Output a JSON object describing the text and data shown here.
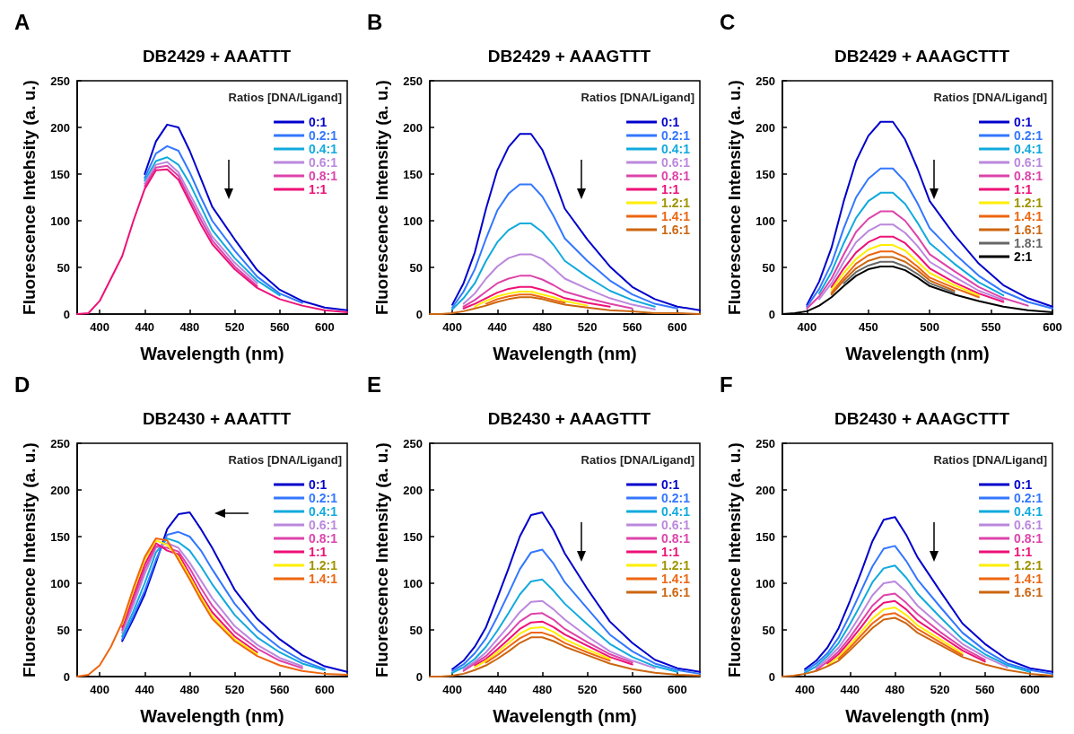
{
  "chart_data": [
    {
      "type": "line",
      "title": "DB2429 + AAATTT",
      "xlabel": "Wavelength (nm)",
      "ylabel": "Fluorescence Intehsity (a. u.)",
      "legend_title": "Ratios [DNA/Ligand]",
      "annotations": [
        "A"
      ],
      "legend": "top right",
      "grid": false,
      "xlim": [
        380,
        620
      ],
      "xticks": [
        400,
        440,
        480,
        520,
        560,
        600
      ],
      "ylim": [
        0,
        250
      ],
      "yticks": [
        0,
        50,
        100,
        150,
        200,
        250
      ],
      "x": [
        380,
        390,
        400,
        410,
        420,
        430,
        440,
        450,
        460,
        470,
        480,
        490,
        500,
        520,
        540,
        560,
        580,
        600,
        620
      ],
      "series": [
        {
          "name": "0:1",
          "color": "#0000cc",
          "values": [
            null,
            null,
            null,
            null,
            null,
            null,
            150,
            185,
            203,
            200,
            175,
            145,
            115,
            80,
            47,
            26,
            14,
            7,
            4
          ]
        },
        {
          "name": "0.2:1",
          "color": "#3377ff",
          "values": [
            null,
            null,
            null,
            null,
            null,
            null,
            146,
            172,
            180,
            175,
            152,
            125,
            100,
            68,
            40,
            22,
            12,
            null,
            null
          ]
        },
        {
          "name": "0.4:1",
          "color": "#11aadd",
          "values": [
            null,
            null,
            null,
            null,
            null,
            null,
            143,
            164,
            168,
            160,
            140,
            115,
            90,
            60,
            36,
            20,
            null,
            null,
            null
          ]
        },
        {
          "name": "0.6:1",
          "color": "#bb88dd",
          "values": [
            null,
            null,
            null,
            null,
            null,
            null,
            140,
            160,
            163,
            152,
            129,
            106,
            83,
            55,
            33,
            null,
            null,
            null,
            null
          ]
        },
        {
          "name": "0.8:1",
          "color": "#dd44aa",
          "values": [
            null,
            null,
            null,
            null,
            null,
            null,
            137,
            157,
            159,
            148,
            124,
            101,
            79,
            51,
            30,
            null,
            null,
            null,
            null
          ]
        },
        {
          "name": "1:1",
          "color": "#ee1177",
          "values": [
            0,
            1,
            14,
            38,
            62,
            100,
            134,
            154,
            155,
            144,
            120,
            96,
            75,
            48,
            28,
            16,
            9,
            4,
            2
          ]
        }
      ]
    },
    {
      "type": "line",
      "title": "DB2429 + AAAGTTT",
      "xlabel": "Wavelength (nm)",
      "ylabel": "Fluorescence Intensity (a. u.)",
      "legend_title": "Ratios [DNA/Ligand]",
      "annotations": [
        "B"
      ],
      "legend": "top right",
      "grid": false,
      "xlim": [
        380,
        620
      ],
      "xticks": [
        400,
        440,
        480,
        520,
        560,
        600
      ],
      "ylim": [
        0,
        250
      ],
      "yticks": [
        0,
        50,
        100,
        150,
        200,
        250
      ],
      "x": [
        380,
        390,
        400,
        410,
        420,
        430,
        440,
        450,
        460,
        470,
        480,
        490,
        500,
        520,
        540,
        560,
        580,
        600,
        620
      ],
      "series": [
        {
          "name": "0:1",
          "color": "#0000cc",
          "values": [
            null,
            null,
            10,
            33,
            66,
            113,
            154,
            179,
            193,
            193,
            176,
            146,
            113,
            80,
            51,
            29,
            16,
            8,
            4
          ]
        },
        {
          "name": "0.2:1",
          "color": "#3377ff",
          "values": [
            null,
            null,
            7,
            24,
            48,
            81,
            111,
            129,
            139,
            139,
            126,
            105,
            81,
            57,
            36,
            21,
            11,
            6,
            null
          ]
        },
        {
          "name": "0.4:1",
          "color": "#11aadd",
          "values": [
            null,
            null,
            5,
            17,
            33,
            57,
            77,
            90,
            97,
            97,
            88,
            74,
            57,
            40,
            25,
            15,
            8,
            null,
            null
          ]
        },
        {
          "name": "0.6:1",
          "color": "#bb88dd",
          "values": [
            null,
            null,
            null,
            11,
            22,
            38,
            51,
            60,
            64,
            64,
            59,
            49,
            38,
            27,
            17,
            10,
            5,
            null,
            null
          ]
        },
        {
          "name": "0.8:1",
          "color": "#dd44aa",
          "values": [
            null,
            null,
            null,
            8,
            15,
            24,
            33,
            38,
            41,
            41,
            37,
            31,
            24,
            17,
            11,
            6,
            null,
            null,
            null
          ]
        },
        {
          "name": "1:1",
          "color": "#ee1177",
          "values": [
            null,
            null,
            null,
            6,
            11,
            17,
            23,
            27,
            29,
            29,
            26,
            22,
            17,
            12,
            8,
            null,
            null,
            null,
            null
          ]
        },
        {
          "name": "1.2:1",
          "color": "#ffee00",
          "values": [
            null,
            null,
            null,
            null,
            8,
            14,
            19,
            22,
            24,
            24,
            21,
            18,
            14,
            9,
            null,
            null,
            null,
            null,
            null
          ]
        },
        {
          "name": "1.4:1",
          "color": "#ee6611",
          "values": [
            null,
            null,
            null,
            null,
            null,
            11,
            16,
            19,
            21,
            21,
            18,
            15,
            12,
            null,
            null,
            null,
            null,
            null,
            null
          ]
        },
        {
          "name": "1.6:1",
          "color": "#cc6611",
          "values": [
            0,
            0,
            1,
            3,
            6,
            9,
            13,
            16,
            18,
            18,
            16,
            13,
            10,
            7,
            4,
            3,
            1,
            1,
            0
          ]
        }
      ]
    },
    {
      "type": "line",
      "title": "DB2429 + AAAGCTTT",
      "xlabel": "Wavelength (nm)",
      "ylabel": "Fluorescence Intensity (a. u.)",
      "legend_title": "Ratios [DNA/Ligand]",
      "annotations": [
        "C"
      ],
      "legend": "top right",
      "grid": false,
      "xlim": [
        380,
        600
      ],
      "xticks": [
        400,
        450,
        500,
        550,
        600
      ],
      "ylim": [
        0,
        250
      ],
      "yticks": [
        0,
        50,
        100,
        150,
        200,
        250
      ],
      "x": [
        380,
        390,
        400,
        410,
        420,
        430,
        440,
        450,
        460,
        470,
        480,
        490,
        500,
        520,
        540,
        560,
        580,
        600
      ],
      "series": [
        {
          "name": "0:1",
          "color": "#0000cc",
          "values": [
            null,
            null,
            10,
            35,
            71,
            121,
            164,
            191,
            206,
            206,
            187,
            156,
            121,
            85,
            54,
            31,
            17,
            8
          ]
        },
        {
          "name": "0.2:1",
          "color": "#3377ff",
          "values": [
            null,
            null,
            8,
            27,
            54,
            92,
            125,
            145,
            156,
            156,
            142,
            119,
            92,
            65,
            41,
            24,
            13,
            6
          ]
        },
        {
          "name": "0.4:1",
          "color": "#11aadd",
          "values": [
            null,
            null,
            null,
            22,
            45,
            76,
            103,
            121,
            130,
            130,
            118,
            98,
            76,
            54,
            34,
            20,
            null,
            null
          ]
        },
        {
          "name": "0.6:1",
          "color": "#bb88dd",
          "values": [
            null,
            null,
            null,
            16,
            33,
            56,
            77,
            89,
            96,
            96,
            87,
            73,
            56,
            40,
            25,
            15,
            null,
            null
          ]
        },
        {
          "name": "0.8:1",
          "color": "#dd44aa",
          "values": [
            null,
            null,
            6,
            19,
            38,
            64,
            88,
            102,
            110,
            110,
            100,
            83,
            64,
            46,
            29,
            17,
            9,
            null
          ]
        },
        {
          "name": "1:1",
          "color": "#ee1177",
          "values": [
            null,
            null,
            null,
            null,
            29,
            49,
            66,
            77,
            83,
            83,
            76,
            63,
            49,
            34,
            22,
            13,
            null,
            null
          ]
        },
        {
          "name": "1.2:1",
          "color": "#ffee00",
          "values": [
            null,
            null,
            null,
            null,
            26,
            44,
            59,
            69,
            74,
            74,
            68,
            56,
            44,
            31,
            20,
            null,
            null,
            null
          ]
        },
        {
          "name": "1.4:1",
          "color": "#ee6611",
          "values": [
            null,
            null,
            null,
            null,
            23,
            39,
            54,
            63,
            67,
            67,
            61,
            51,
            39,
            28,
            18,
            null,
            null,
            null
          ]
        },
        {
          "name": "1.6:1",
          "color": "#cc6611",
          "values": [
            null,
            null,
            null,
            null,
            21,
            36,
            49,
            57,
            61,
            61,
            56,
            47,
            36,
            25,
            null,
            null,
            null,
            null
          ]
        },
        {
          "name": "1.8:1",
          "color": "#666666",
          "values": [
            null,
            null,
            null,
            null,
            null,
            33,
            45,
            52,
            56,
            56,
            51,
            43,
            33,
            23,
            null,
            null,
            null,
            null
          ]
        },
        {
          "name": "2:1",
          "color": "#000000",
          "values": [
            0,
            1,
            3,
            9,
            18,
            30,
            41,
            48,
            51,
            51,
            47,
            39,
            30,
            21,
            14,
            8,
            4,
            2
          ]
        }
      ]
    },
    {
      "type": "line",
      "title": "DB2430 + AAATTT",
      "xlabel": "Wavelength (nm)",
      "ylabel": "Fluorescence Intensity (a. u.)",
      "legend_title": "Ratios [DNA/Ligand]",
      "annotations": [
        "D"
      ],
      "legend": "top right",
      "grid": false,
      "xlim": [
        380,
        620
      ],
      "xticks": [
        400,
        440,
        480,
        520,
        560,
        600
      ],
      "ylim": [
        0,
        250
      ],
      "yticks": [
        0,
        50,
        100,
        150,
        200,
        250
      ],
      "x": [
        380,
        390,
        400,
        410,
        420,
        430,
        440,
        450,
        460,
        470,
        480,
        490,
        500,
        520,
        540,
        560,
        580,
        600,
        620
      ],
      "series": [
        {
          "name": "0:1",
          "color": "#0000cc",
          "values": [
            null,
            null,
            null,
            null,
            38,
            62,
            88,
            122,
            158,
            174,
            176,
            158,
            138,
            93,
            62,
            40,
            23,
            11,
            5
          ]
        },
        {
          "name": "0.2:1",
          "color": "#3377ff",
          "values": [
            null,
            null,
            null,
            null,
            40,
            65,
            92,
            125,
            152,
            155,
            150,
            135,
            115,
            78,
            50,
            31,
            17,
            8,
            null
          ]
        },
        {
          "name": "0.4:1",
          "color": "#11aadd",
          "values": [
            null,
            null,
            null,
            null,
            43,
            70,
            100,
            133,
            148,
            144,
            135,
            118,
            99,
            66,
            42,
            26,
            14,
            7,
            null
          ]
        },
        {
          "name": "0.6:1",
          "color": "#bb88dd",
          "values": [
            null,
            null,
            null,
            null,
            47,
            77,
            110,
            138,
            143,
            138,
            122,
            103,
            84,
            54,
            34,
            20,
            11,
            null,
            null
          ]
        },
        {
          "name": "0.8:1",
          "color": "#dd44aa",
          "values": [
            null,
            null,
            null,
            null,
            50,
            82,
            115,
            140,
            138,
            134,
            116,
            95,
            76,
            48,
            30,
            17,
            9,
            null,
            null
          ]
        },
        {
          "name": "1:1",
          "color": "#ee1177",
          "values": [
            null,
            null,
            null,
            null,
            53,
            87,
            120,
            143,
            135,
            131,
            110,
            88,
            69,
            43,
            26,
            null,
            null,
            null,
            null
          ]
        },
        {
          "name": "1.2:1",
          "color": "#ffee00",
          "values": [
            null,
            null,
            null,
            null,
            56,
            92,
            125,
            146,
            141,
            128,
            107,
            85,
            65,
            40,
            24,
            null,
            null,
            null,
            null
          ]
        },
        {
          "name": "1.4:1",
          "color": "#ee6611",
          "values": [
            0,
            2,
            12,
            32,
            58,
            95,
            128,
            148,
            146,
            125,
            104,
            82,
            62,
            38,
            22,
            12,
            6,
            3,
            2
          ]
        }
      ]
    },
    {
      "type": "line",
      "title": "DB2430 + AAAGTTT",
      "xlabel": "Wavelength (nm)",
      "ylabel": "Fluorescence Intensity (a. u.)",
      "legend_title": "Ratios [DNA/Ligand]",
      "annotations": [
        "E"
      ],
      "legend": "top right",
      "grid": false,
      "xlim": [
        380,
        620
      ],
      "xticks": [
        400,
        440,
        480,
        520,
        560,
        600
      ],
      "ylim": [
        0,
        250
      ],
      "yticks": [
        0,
        50,
        100,
        150,
        200,
        250
      ],
      "x": [
        380,
        390,
        400,
        410,
        420,
        430,
        440,
        450,
        460,
        470,
        480,
        490,
        500,
        520,
        540,
        560,
        580,
        600,
        620
      ],
      "series": [
        {
          "name": "0:1",
          "color": "#0000cc",
          "values": [
            null,
            null,
            8,
            17,
            32,
            53,
            84,
            116,
            150,
            173,
            176,
            157,
            132,
            94,
            59,
            36,
            18,
            9,
            5
          ]
        },
        {
          "name": "0.2:1",
          "color": "#3377ff",
          "values": [
            null,
            null,
            6,
            13,
            25,
            41,
            64,
            89,
            115,
            133,
            136,
            121,
            101,
            73,
            45,
            27,
            14,
            7,
            3
          ]
        },
        {
          "name": "0.4:1",
          "color": "#11aadd",
          "values": [
            null,
            null,
            4,
            10,
            19,
            32,
            49,
            68,
            88,
            102,
            104,
            92,
            78,
            56,
            35,
            21,
            11,
            5,
            null
          ]
        },
        {
          "name": "0.6:1",
          "color": "#bb88dd",
          "values": [
            null,
            null,
            null,
            8,
            16,
            26,
            40,
            54,
            69,
            80,
            81,
            72,
            61,
            43,
            27,
            17,
            9,
            null,
            null
          ]
        },
        {
          "name": "0.8:1",
          "color": "#dd44aa",
          "values": [
            null,
            null,
            null,
            6,
            14,
            22,
            34,
            46,
            59,
            67,
            68,
            61,
            51,
            37,
            24,
            15,
            null,
            null,
            null
          ]
        },
        {
          "name": "1:1",
          "color": "#ee1177",
          "values": [
            null,
            null,
            null,
            null,
            12,
            19,
            29,
            40,
            51,
            58,
            59,
            53,
            45,
            33,
            21,
            13,
            null,
            null,
            null
          ]
        },
        {
          "name": "1.2:1",
          "color": "#ffee00",
          "values": [
            null,
            null,
            null,
            null,
            10,
            17,
            26,
            36,
            46,
            52,
            53,
            48,
            40,
            29,
            19,
            null,
            null,
            null,
            null
          ]
        },
        {
          "name": "1.4:1",
          "color": "#ee6611",
          "values": [
            null,
            null,
            null,
            null,
            null,
            15,
            23,
            32,
            41,
            47,
            47,
            43,
            36,
            26,
            17,
            null,
            null,
            null,
            null
          ]
        },
        {
          "name": "1.6:1",
          "color": "#cc6611",
          "values": [
            0,
            0,
            1,
            3,
            7,
            12,
            19,
            27,
            36,
            42,
            42,
            38,
            32,
            23,
            14,
            8,
            4,
            2,
            1
          ]
        }
      ]
    },
    {
      "type": "line",
      "title": "DB2430 + AAAGCTTT",
      "xlabel": "Wavelength (nm)",
      "ylabel": "Fluorescence Intensity (a. u.)",
      "legend_title": "Ratios [DNA/Ligand]",
      "annotations": [
        "F"
      ],
      "legend": "top right",
      "grid": false,
      "xlim": [
        380,
        620
      ],
      "xticks": [
        400,
        440,
        480,
        520,
        560,
        600
      ],
      "ylim": [
        0,
        250
      ],
      "yticks": [
        0,
        50,
        100,
        150,
        200,
        250
      ],
      "x": [
        380,
        390,
        400,
        410,
        420,
        430,
        440,
        450,
        460,
        470,
        480,
        490,
        500,
        520,
        540,
        560,
        580,
        600,
        620
      ],
      "series": [
        {
          "name": "0:1",
          "color": "#0000cc",
          "values": [
            null,
            null,
            8,
            17,
            31,
            52,
            81,
            112,
            145,
            168,
            171,
            152,
            128,
            92,
            57,
            35,
            18,
            9,
            5
          ]
        },
        {
          "name": "0.2:1",
          "color": "#3377ff",
          "values": [
            null,
            null,
            6,
            14,
            25,
            42,
            66,
            92,
            118,
            137,
            140,
            124,
            104,
            75,
            47,
            28,
            14,
            7,
            3
          ]
        },
        {
          "name": "0.4:1",
          "color": "#11aadd",
          "values": [
            null,
            null,
            4,
            11,
            22,
            36,
            56,
            78,
            101,
            116,
            119,
            106,
            89,
            64,
            40,
            24,
            12,
            5,
            null
          ]
        },
        {
          "name": "0.6:1",
          "color": "#bb88dd",
          "values": [
            null,
            null,
            null,
            9,
            19,
            31,
            48,
            67,
            87,
            100,
            102,
            91,
            76,
            55,
            35,
            21,
            10,
            null,
            null
          ]
        },
        {
          "name": "0.8:1",
          "color": "#dd44aa",
          "values": [
            null,
            null,
            null,
            7,
            16,
            27,
            42,
            59,
            76,
            87,
            89,
            79,
            67,
            48,
            31,
            18,
            null,
            null,
            null
          ]
        },
        {
          "name": "1:1",
          "color": "#ee1177",
          "values": [
            null,
            null,
            null,
            null,
            14,
            24,
            38,
            53,
            69,
            79,
            81,
            72,
            60,
            44,
            28,
            16,
            null,
            null,
            null
          ]
        },
        {
          "name": "1.2:1",
          "color": "#ffee00",
          "values": [
            null,
            null,
            null,
            null,
            12,
            21,
            34,
            48,
            62,
            72,
            74,
            66,
            55,
            40,
            25,
            null,
            null,
            null,
            null
          ]
        },
        {
          "name": "1.4:1",
          "color": "#ee6611",
          "values": [
            null,
            null,
            null,
            null,
            null,
            19,
            31,
            44,
            57,
            66,
            68,
            61,
            51,
            37,
            23,
            null,
            null,
            null,
            null
          ]
        },
        {
          "name": "1.6:1",
          "color": "#cc6611",
          "values": [
            0,
            1,
            3,
            6,
            11,
            17,
            28,
            40,
            52,
            61,
            63,
            57,
            47,
            34,
            21,
            13,
            7,
            3,
            1
          ]
        }
      ]
    }
  ]
}
